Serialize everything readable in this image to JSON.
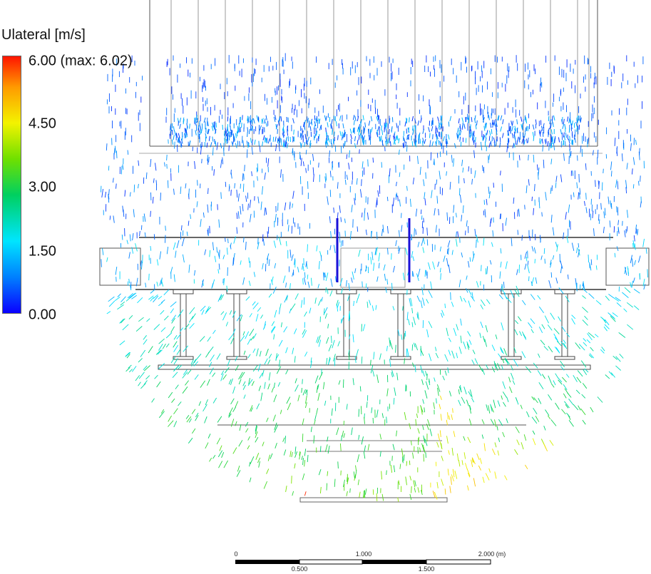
{
  "legend": {
    "title": "Ulateral [m/s]",
    "ticks": [
      {
        "value": 6.0,
        "label": "6.00 (max: 6.02)"
      },
      {
        "value": 4.5,
        "label": "4.50"
      },
      {
        "value": 3.0,
        "label": "3.00"
      },
      {
        "value": 1.5,
        "label": "1.50"
      },
      {
        "value": 0.0,
        "label": "0.00"
      }
    ],
    "min": 0.0,
    "max": 6.0,
    "colormap": [
      "#0a00ff",
      "#0080ff",
      "#00e5ff",
      "#00d060",
      "#6fe000",
      "#f3f300",
      "#ff9a00",
      "#ff1400"
    ]
  },
  "scale_bar": {
    "top_labels": [
      "0",
      "1.000",
      "2.000 (m)"
    ],
    "bottom_labels": [
      "0.500",
      "1.500"
    ]
  }
}
